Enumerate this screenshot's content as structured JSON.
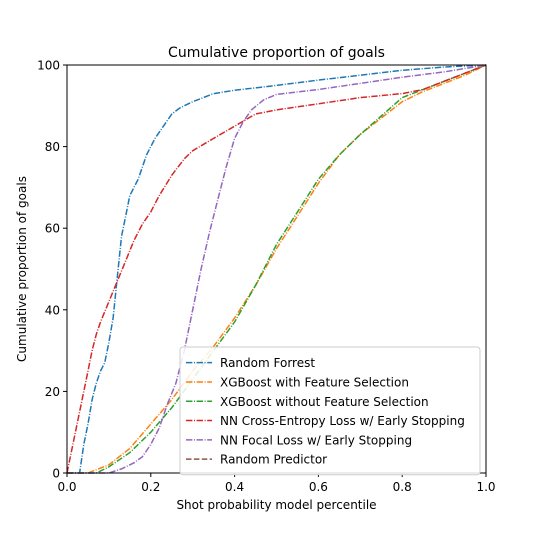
{
  "chart_data": {
    "type": "line",
    "title": "Cumulative proportion of goals",
    "xlabel": "Shot probability model percentile",
    "ylabel": "Cumulative proportion of goals",
    "xlim": [
      0,
      1
    ],
    "ylim": [
      0,
      100
    ],
    "xticks": [
      0.0,
      0.2,
      0.4,
      0.6,
      0.8,
      1.0
    ],
    "xtick_labels": [
      "0.0",
      "0.2",
      "0.4",
      "0.6",
      "0.8",
      "1.0"
    ],
    "yticks": [
      0,
      20,
      40,
      60,
      80,
      100
    ],
    "ytick_labels": [
      "0",
      "20",
      "40",
      "60",
      "80",
      "100"
    ],
    "grid": false,
    "legend_position": "bottom-right",
    "series": [
      {
        "name": "Random Forrest",
        "color": "#1f77b4",
        "dash": "dashdot",
        "points": [
          [
            0.0,
            0
          ],
          [
            0.03,
            0
          ],
          [
            0.04,
            7
          ],
          [
            0.05,
            12
          ],
          [
            0.06,
            18
          ],
          [
            0.07,
            22
          ],
          [
            0.08,
            25
          ],
          [
            0.09,
            27
          ],
          [
            0.1,
            32
          ],
          [
            0.11,
            38
          ],
          [
            0.12,
            48
          ],
          [
            0.13,
            58
          ],
          [
            0.14,
            63
          ],
          [
            0.15,
            68
          ],
          [
            0.17,
            72
          ],
          [
            0.19,
            78
          ],
          [
            0.21,
            82
          ],
          [
            0.23,
            85
          ],
          [
            0.25,
            88
          ],
          [
            0.27,
            89.5
          ],
          [
            0.3,
            91
          ],
          [
            0.35,
            93
          ],
          [
            0.4,
            93.8
          ],
          [
            0.5,
            95
          ],
          [
            0.6,
            96.3
          ],
          [
            0.7,
            97.5
          ],
          [
            0.8,
            98.7
          ],
          [
            0.9,
            99.5
          ],
          [
            1.0,
            100
          ]
        ]
      },
      {
        "name": "XGBoost with Feature Selection",
        "color": "#ff7f0e",
        "dash": "dashdot",
        "points": [
          [
            0.0,
            0
          ],
          [
            0.05,
            0
          ],
          [
            0.1,
            2
          ],
          [
            0.15,
            6
          ],
          [
            0.2,
            12
          ],
          [
            0.25,
            18
          ],
          [
            0.3,
            25
          ],
          [
            0.35,
            31
          ],
          [
            0.4,
            38
          ],
          [
            0.45,
            46
          ],
          [
            0.5,
            55
          ],
          [
            0.55,
            63
          ],
          [
            0.6,
            71
          ],
          [
            0.65,
            78
          ],
          [
            0.7,
            83
          ],
          [
            0.75,
            87
          ],
          [
            0.8,
            91
          ],
          [
            0.85,
            93.5
          ],
          [
            0.9,
            95.5
          ],
          [
            0.95,
            97.5
          ],
          [
            1.0,
            100
          ]
        ]
      },
      {
        "name": "XGBoost without Feature Selection",
        "color": "#2ca02c",
        "dash": "dashdot",
        "points": [
          [
            0.0,
            0
          ],
          [
            0.07,
            0
          ],
          [
            0.1,
            1.5
          ],
          [
            0.15,
            5
          ],
          [
            0.2,
            10
          ],
          [
            0.25,
            16
          ],
          [
            0.3,
            23
          ],
          [
            0.35,
            30
          ],
          [
            0.4,
            37
          ],
          [
            0.45,
            46
          ],
          [
            0.5,
            56
          ],
          [
            0.55,
            64
          ],
          [
            0.6,
            72
          ],
          [
            0.65,
            78
          ],
          [
            0.7,
            83
          ],
          [
            0.75,
            87.5
          ],
          [
            0.8,
            92
          ],
          [
            0.85,
            94
          ],
          [
            0.9,
            96
          ],
          [
            0.95,
            98
          ],
          [
            1.0,
            100
          ]
        ]
      },
      {
        "name": "NN Cross-Entropy Loss w/ Early Stopping",
        "color": "#d62728",
        "dash": "dashdot",
        "points": [
          [
            0.0,
            0
          ],
          [
            0.01,
            5
          ],
          [
            0.02,
            10
          ],
          [
            0.03,
            15
          ],
          [
            0.04,
            20
          ],
          [
            0.05,
            25
          ],
          [
            0.06,
            30
          ],
          [
            0.07,
            34
          ],
          [
            0.08,
            37
          ],
          [
            0.1,
            42
          ],
          [
            0.12,
            47
          ],
          [
            0.14,
            52
          ],
          [
            0.16,
            57
          ],
          [
            0.18,
            61
          ],
          [
            0.2,
            64
          ],
          [
            0.22,
            68
          ],
          [
            0.25,
            73
          ],
          [
            0.28,
            77
          ],
          [
            0.3,
            79
          ],
          [
            0.35,
            82
          ],
          [
            0.4,
            85
          ],
          [
            0.45,
            88
          ],
          [
            0.5,
            89
          ],
          [
            0.6,
            90.5
          ],
          [
            0.7,
            92
          ],
          [
            0.8,
            93
          ],
          [
            0.85,
            94
          ],
          [
            0.9,
            96
          ],
          [
            0.95,
            98
          ],
          [
            1.0,
            100
          ]
        ]
      },
      {
        "name": "NN Focal Loss w/ Early Stopping",
        "color": "#9467bd",
        "dash": "dashdot",
        "points": [
          [
            0.0,
            0
          ],
          [
            0.1,
            0
          ],
          [
            0.13,
            1
          ],
          [
            0.16,
            2.5
          ],
          [
            0.18,
            4
          ],
          [
            0.2,
            7
          ],
          [
            0.22,
            11
          ],
          [
            0.24,
            17
          ],
          [
            0.26,
            22
          ],
          [
            0.28,
            30
          ],
          [
            0.3,
            40
          ],
          [
            0.32,
            50
          ],
          [
            0.34,
            59
          ],
          [
            0.36,
            67
          ],
          [
            0.38,
            75
          ],
          [
            0.4,
            82
          ],
          [
            0.42,
            86
          ],
          [
            0.44,
            89
          ],
          [
            0.47,
            91.5
          ],
          [
            0.5,
            92.8
          ],
          [
            0.6,
            94
          ],
          [
            0.7,
            95.5
          ],
          [
            0.8,
            97
          ],
          [
            0.9,
            98.3
          ],
          [
            1.0,
            100
          ]
        ]
      },
      {
        "name": "Random Predictor",
        "color": "#8c564b",
        "dash": "dashed",
        "points": []
      }
    ]
  }
}
